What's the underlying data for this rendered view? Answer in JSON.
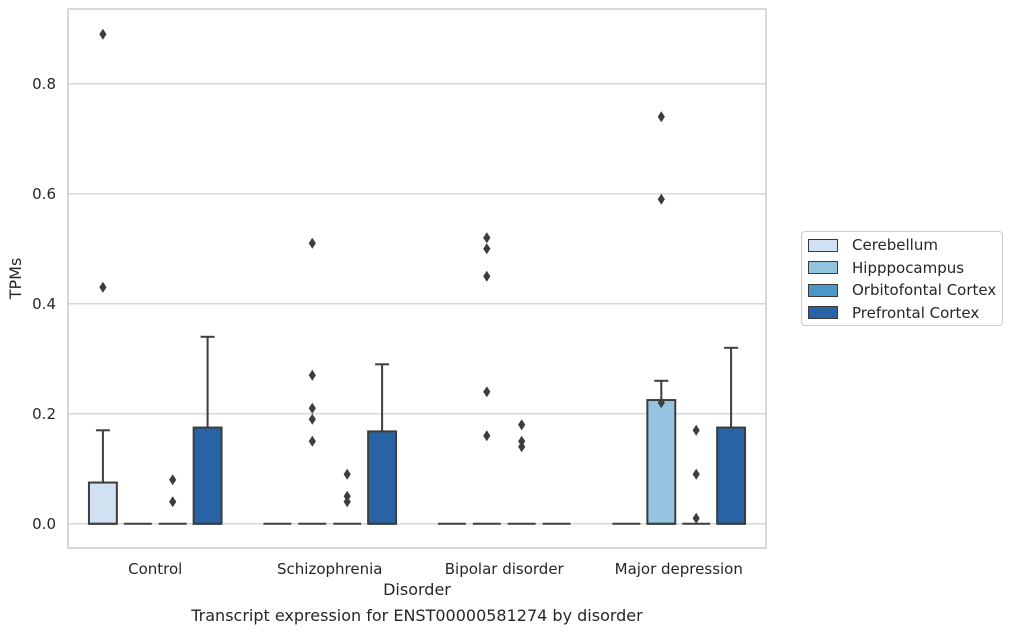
{
  "chart_data": {
    "type": "box",
    "title": "",
    "caption": "Transcript expression for ENST00000581274 by disorder",
    "xlabel": "Disorder",
    "ylabel": "TPMs",
    "ylim": [
      -0.044,
      0.936
    ],
    "yticks": [
      0.0,
      0.2,
      0.4,
      0.6,
      0.8
    ],
    "ytick_labels": [
      "0.0",
      "0.2",
      "0.4",
      "0.6",
      "0.8"
    ],
    "grid": "horizontal",
    "legend_position": "right",
    "categories": [
      "Control",
      "Schizophrenia",
      "Bipolar disorder",
      "Major depression"
    ],
    "series": [
      {
        "name": "Cerebellum",
        "color": "#d0e1f2",
        "boxes": [
          {
            "q1": 0.0,
            "median": 0.0,
            "q3": 0.075,
            "whisker_low": 0.0,
            "whisker_high": 0.17,
            "outliers": [
              0.89,
              0.43
            ]
          },
          {
            "q1": 0.0,
            "median": 0.0,
            "q3": 0.0,
            "whisker_low": 0.0,
            "whisker_high": 0.0,
            "outliers": []
          },
          {
            "q1": 0.0,
            "median": 0.0,
            "q3": 0.0,
            "whisker_low": 0.0,
            "whisker_high": 0.0,
            "outliers": []
          },
          {
            "q1": 0.0,
            "median": 0.0,
            "q3": 0.0,
            "whisker_low": 0.0,
            "whisker_high": 0.0,
            "outliers": []
          }
        ]
      },
      {
        "name": "Hipppocampus",
        "color": "#94c4df",
        "boxes": [
          {
            "q1": 0.0,
            "median": 0.0,
            "q3": 0.0,
            "whisker_low": 0.0,
            "whisker_high": 0.0,
            "outliers": []
          },
          {
            "q1": 0.0,
            "median": 0.0,
            "q3": 0.0,
            "whisker_low": 0.0,
            "whisker_high": 0.0,
            "outliers": [
              0.51,
              0.27,
              0.21,
              0.19,
              0.15
            ]
          },
          {
            "q1": 0.0,
            "median": 0.0,
            "q3": 0.0,
            "whisker_low": 0.0,
            "whisker_high": 0.0,
            "outliers": [
              0.52,
              0.5,
              0.45,
              0.24,
              0.16
            ]
          },
          {
            "q1": 0.0,
            "median": 0.0,
            "q3": 0.225,
            "whisker_low": 0.0,
            "whisker_high": 0.26,
            "outliers": [
              0.74,
              0.59,
              0.22
            ]
          }
        ]
      },
      {
        "name": "Orbitofontal Cortex",
        "color": "#4a98c9",
        "boxes": [
          {
            "q1": 0.0,
            "median": 0.0,
            "q3": 0.0,
            "whisker_low": 0.0,
            "whisker_high": 0.0,
            "outliers": [
              0.08,
              0.04
            ]
          },
          {
            "q1": 0.0,
            "median": 0.0,
            "q3": 0.0,
            "whisker_low": 0.0,
            "whisker_high": 0.0,
            "outliers": [
              0.09,
              0.05,
              0.04
            ]
          },
          {
            "q1": 0.0,
            "median": 0.0,
            "q3": 0.0,
            "whisker_low": 0.0,
            "whisker_high": 0.0,
            "outliers": [
              0.18,
              0.15,
              0.14
            ]
          },
          {
            "q1": 0.0,
            "median": 0.0,
            "q3": 0.0,
            "whisker_low": 0.0,
            "whisker_high": 0.0,
            "outliers": [
              0.17,
              0.09,
              0.01
            ]
          }
        ]
      },
      {
        "name": "Prefrontal Cortex",
        "color": "#2864a5",
        "boxes": [
          {
            "q1": 0.0,
            "median": 0.0,
            "q3": 0.175,
            "whisker_low": 0.0,
            "whisker_high": 0.34,
            "outliers": []
          },
          {
            "q1": 0.0,
            "median": 0.0,
            "q3": 0.168,
            "whisker_low": 0.0,
            "whisker_high": 0.29,
            "outliers": []
          },
          {
            "q1": 0.0,
            "median": 0.0,
            "q3": 0.0,
            "whisker_low": 0.0,
            "whisker_high": 0.0,
            "outliers": []
          },
          {
            "q1": 0.0,
            "median": 0.0,
            "q3": 0.175,
            "whisker_low": 0.0,
            "whisker_high": 0.32,
            "outliers": []
          }
        ]
      }
    ]
  }
}
